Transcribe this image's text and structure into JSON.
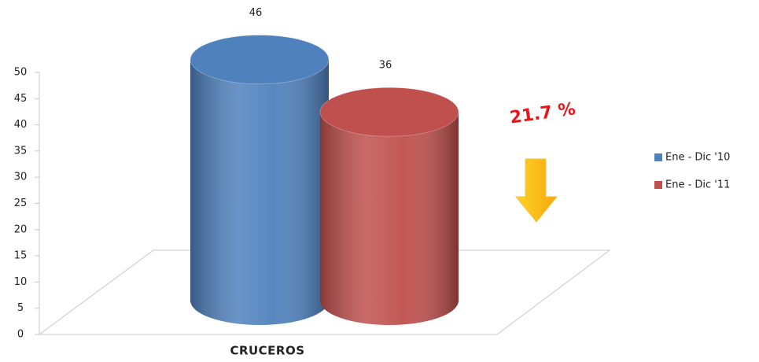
{
  "chart_data": {
    "type": "bar3d",
    "categories": [
      "CRUCEROS"
    ],
    "series": [
      {
        "name": "Ene - Dic '10",
        "color": "#4f81bd",
        "values": [
          46
        ]
      },
      {
        "name": "Ene - Dic '11",
        "color": "#c0504d",
        "values": [
          36
        ]
      }
    ],
    "ylim": [
      0,
      50
    ],
    "yticks": [
      0,
      5,
      10,
      15,
      20,
      25,
      30,
      35,
      40,
      45,
      50
    ],
    "annotation": "21.7 %",
    "legend": "right"
  }
}
